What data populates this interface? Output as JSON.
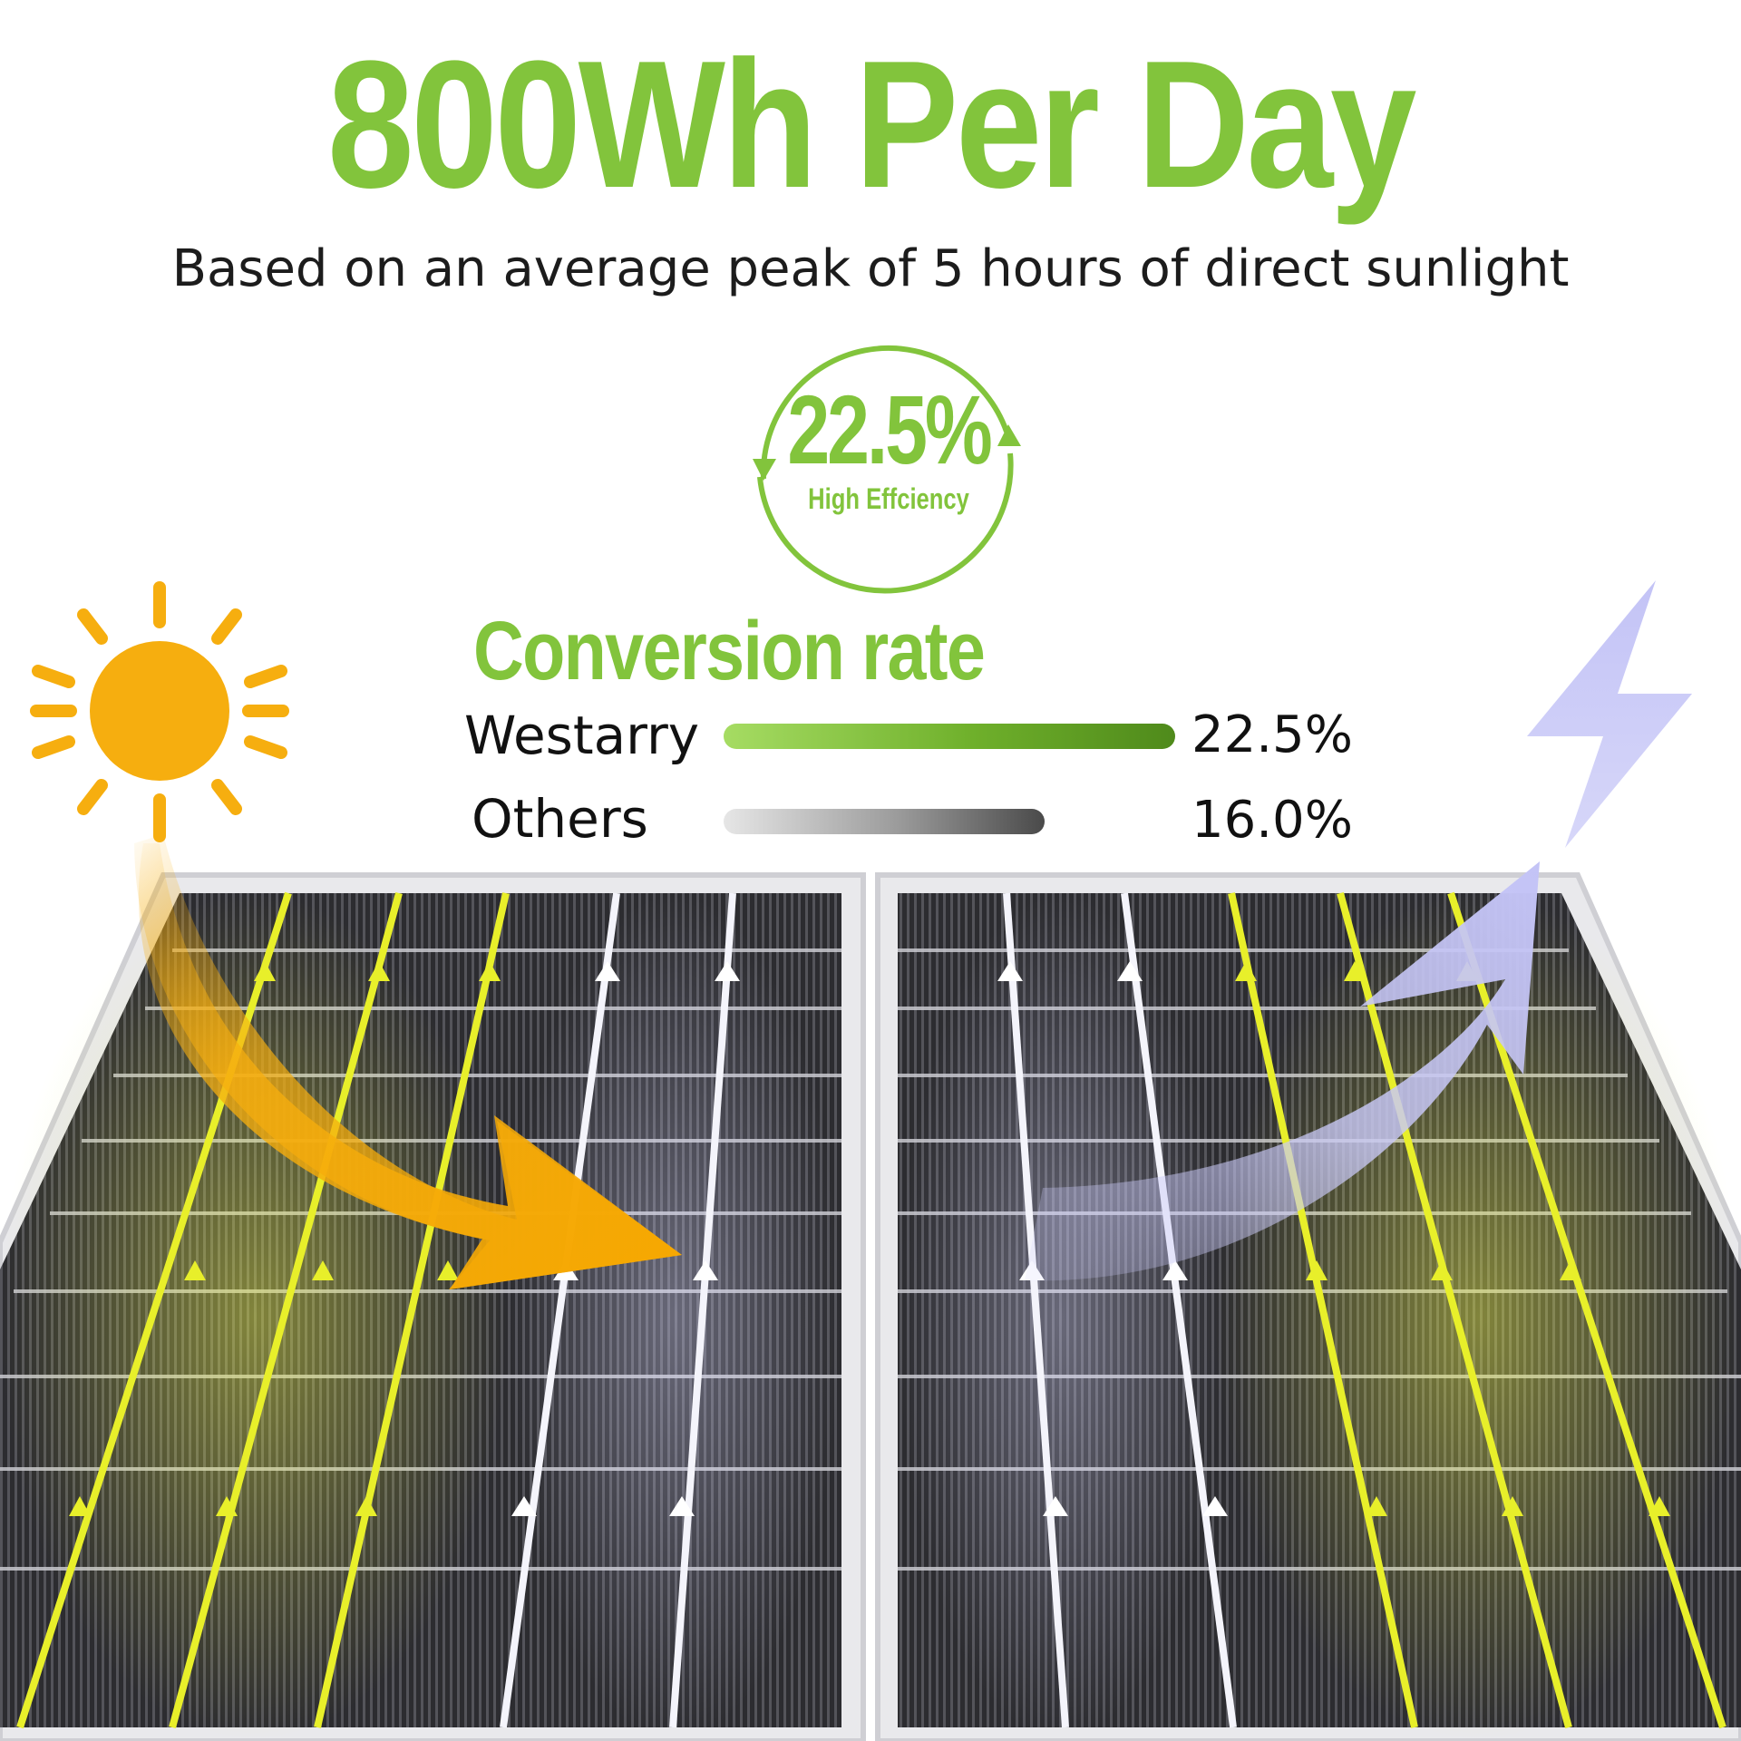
{
  "headline": "800Wh Per Day",
  "subtitle": "Based on an average peak of 5 hours of direct sunlight",
  "efficiency_badge": {
    "value": "22.5%",
    "caption": "High Effciency"
  },
  "conversion": {
    "title": "Conversion rate",
    "rows": [
      {
        "label": "Westarry",
        "value_text": "22.5%",
        "value": 22.5
      },
      {
        "label": "Others",
        "value_text": "16.0%",
        "value": 16.0
      }
    ]
  },
  "colors": {
    "accent_green": "#82c43c",
    "sun_orange": "#f6ae0f",
    "energy_lavender": "#c9c9f7",
    "busbar_yellow": "#e8ef2a"
  },
  "icons": [
    "sun-icon",
    "lightning-bolt-icon",
    "circular-arrows-icon"
  ]
}
